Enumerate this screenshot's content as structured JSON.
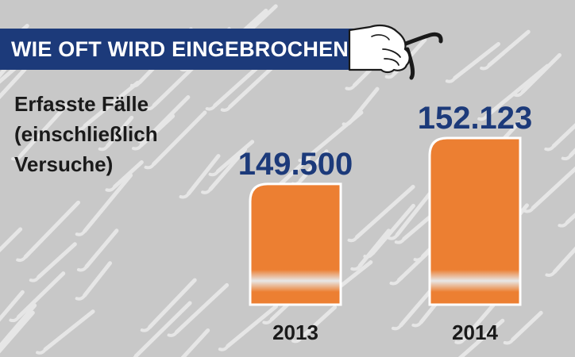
{
  "title": "WIE OFT WIRD EINGEBROCHEN?",
  "subtitle_lines": [
    "Erfasste Fälle",
    "(einschließlich",
    "Versuche)"
  ],
  "icons": {
    "hand": "hand-holding-crowbar-icon",
    "background": "crowbar-pattern"
  },
  "colors": {
    "background": "#c8c8c8",
    "title_bar": "#1c3a7a",
    "bar": "#ec7f32",
    "value_text": "#1c3a7a",
    "pattern": "#e6e6e6"
  },
  "chart_data": {
    "type": "bar",
    "categories": [
      "2013",
      "2014"
    ],
    "values": [
      149500,
      152123
    ],
    "value_labels": [
      "149.500",
      "152.123"
    ],
    "axis_break": true
  }
}
